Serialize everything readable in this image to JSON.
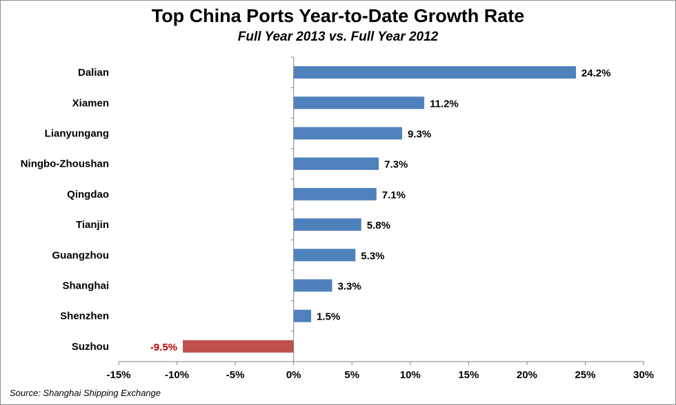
{
  "chart_data": {
    "type": "bar",
    "orientation": "horizontal",
    "title": "Top China Ports Year-to-Date Growth Rate",
    "subtitle": "Full Year 2013 vs. Full Year 2012",
    "categories": [
      "Dalian",
      "Xiamen",
      "Lianyungang",
      "Ningbo-Zhoushan",
      "Qingdao",
      "Tianjin",
      "Guangzhou",
      "Shanghai",
      "Shenzhen",
      "Suzhou"
    ],
    "values": [
      24.2,
      11.2,
      9.3,
      7.3,
      7.1,
      5.8,
      5.3,
      3.3,
      1.5,
      -9.5
    ],
    "data_labels": [
      "24.2%",
      "11.2%",
      "9.3%",
      "7.3%",
      "7.1%",
      "5.8%",
      "5.3%",
      "3.3%",
      "1.5%",
      "-9.5%"
    ],
    "xlim": [
      -15,
      30
    ],
    "xticks": [
      -15,
      -10,
      -5,
      0,
      5,
      10,
      15,
      20,
      25,
      30
    ],
    "xtick_labels": [
      "-15%",
      "-10%",
      "-5%",
      "0%",
      "5%",
      "10%",
      "15%",
      "20%",
      "25%",
      "30%"
    ],
    "grid": false,
    "legend": "none",
    "colors": {
      "positive": "#4f81bd",
      "negative": "#c0504d",
      "negative_label": "#c00000"
    }
  },
  "source": "Source: Shanghai Shipping Exchange"
}
